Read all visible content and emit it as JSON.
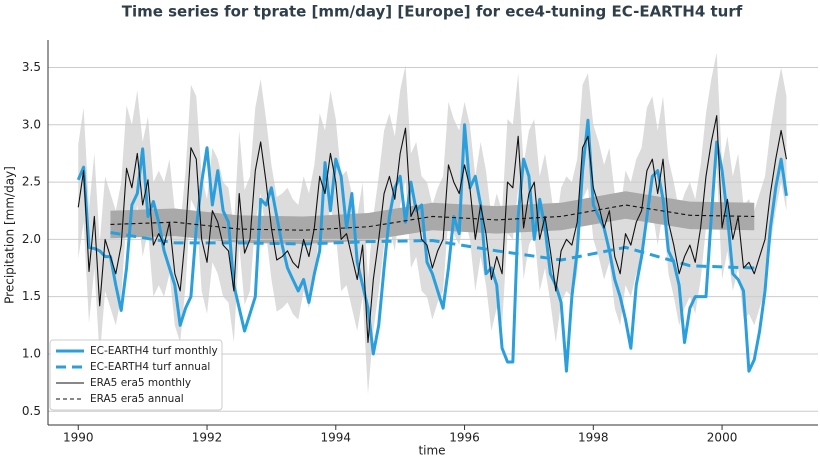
{
  "chart_data": {
    "type": "line",
    "title": "Time series for tprate [mm/day] [Europe] for ece4-tuning EC-EARTH4 turf",
    "xlabel": "time",
    "ylabel": "Precipitation [mm/day]",
    "xlim": [
      1989.53,
      2001.49
    ],
    "ylim": [
      0.38,
      3.74
    ],
    "xticks": [
      1990,
      1992,
      1994,
      1996,
      1998,
      2000
    ],
    "yticks": [
      {
        "value": 0.5,
        "label": "0.5"
      },
      {
        "value": 1,
        "label": "1.0"
      },
      {
        "value": 1.5,
        "label": "1.5"
      },
      {
        "value": 2,
        "label": "2.0"
      },
      {
        "value": 2.5,
        "label": "2.5"
      },
      {
        "value": 3,
        "label": "3.0"
      },
      {
        "value": 3.5,
        "label": "3.5"
      }
    ],
    "grid": true,
    "legend": "lower left",
    "bands": [
      {
        "color": "#dcdcdc",
        "x": [
          1990.0,
          1990.083,
          1990.167,
          1990.25,
          1990.333,
          1990.417,
          1990.5,
          1990.583,
          1990.667,
          1990.75,
          1990.833,
          1990.917,
          1991.0,
          1991.083,
          1991.167,
          1991.25,
          1991.333,
          1991.417,
          1991.5,
          1991.583,
          1991.667,
          1991.75,
          1991.833,
          1991.917,
          1992.0,
          1992.083,
          1992.167,
          1992.25,
          1992.333,
          1992.417,
          1992.5,
          1992.583,
          1992.667,
          1992.75,
          1992.833,
          1992.917,
          1993.0,
          1993.083,
          1993.167,
          1993.25,
          1993.333,
          1993.417,
          1993.5,
          1993.583,
          1993.667,
          1993.75,
          1993.833,
          1993.917,
          1994.0,
          1994.083,
          1994.167,
          1994.25,
          1994.333,
          1994.417,
          1994.5,
          1994.583,
          1994.667,
          1994.75,
          1994.833,
          1994.917,
          1995.0,
          1995.083,
          1995.167,
          1995.25,
          1995.333,
          1995.417,
          1995.5,
          1995.583,
          1995.667,
          1995.75,
          1995.833,
          1995.917,
          1996.0,
          1996.083,
          1996.167,
          1996.25,
          1996.333,
          1996.417,
          1996.5,
          1996.583,
          1996.667,
          1996.75,
          1996.833,
          1996.917,
          1997.0,
          1997.083,
          1997.167,
          1997.25,
          1997.333,
          1997.417,
          1997.5,
          1997.583,
          1997.667,
          1997.75,
          1997.833,
          1997.917,
          1998.0,
          1998.083,
          1998.167,
          1998.25,
          1998.333,
          1998.417,
          1998.5,
          1998.583,
          1998.667,
          1998.75,
          1998.833,
          1998.917,
          1999.0,
          1999.083,
          1999.167,
          1999.25,
          1999.333,
          1999.417,
          1999.5,
          1999.583,
          1999.667,
          1999.75,
          1999.833,
          1999.917,
          2000.0,
          2000.083,
          2000.167,
          2000.25,
          2000.333,
          2000.417,
          2000.5,
          2000.583,
          2000.667,
          2000.75,
          2000.833,
          2000.917,
          2001.0
        ],
        "lower": [
          1.83,
          2.15,
          1.27,
          1.75,
          0.97,
          1.55,
          1.4,
          1.25,
          1.5,
          2.17,
          2.0,
          2.3,
          1.85,
          2.07,
          1.5,
          1.6,
          1.5,
          1.7,
          1.25,
          1.1,
          1.6,
          2.35,
          2.25,
          1.55,
          1.35,
          1.8,
          1.7,
          1.5,
          1.45,
          1.1,
          1.95,
          1.43,
          1.55,
          2.15,
          2.4,
          2.05,
          1.65,
          1.37,
          1.4,
          1.45,
          1.35,
          1.3,
          1.55,
          1.4,
          1.65,
          2.1,
          1.95,
          2.3,
          2.05,
          1.55,
          1.6,
          1.4,
          1.2,
          1.5,
          0.65,
          1.2,
          1.55,
          1.95,
          2.1,
          1.9,
          2.3,
          2.52,
          1.75,
          1.85,
          1.55,
          1.5,
          1.3,
          1.45,
          1.55,
          2.2,
          2.05,
          1.95,
          2.2,
          2.0,
          1.55,
          1.85,
          1.6,
          1.2,
          1.4,
          1.25,
          2.05,
          2.0,
          2.45,
          1.65,
          1.95,
          2.05,
          1.55,
          1.75,
          1.45,
          1.1,
          1.45,
          1.55,
          1.5,
          1.7,
          2.35,
          2.45,
          2.0,
          1.85,
          1.65,
          1.8,
          1.4,
          1.25,
          1.6,
          1.5,
          1.7,
          1.8,
          2.15,
          2.25,
          1.95,
          2.25,
          1.7,
          1.5,
          1.25,
          1.4,
          1.5,
          1.35,
          1.65,
          2.1,
          2.4,
          2.63,
          1.65,
          1.9,
          1.55,
          1.75,
          1.3,
          1.35,
          1.25,
          1.4,
          1.55,
          1.95,
          2.25,
          2.5,
          2.25
        ],
        "upper": [
          2.83,
          3.15,
          2.27,
          2.75,
          1.97,
          2.55,
          2.4,
          2.25,
          2.5,
          3.17,
          3.0,
          3.3,
          2.85,
          3.07,
          2.5,
          2.6,
          2.5,
          2.7,
          2.25,
          2.1,
          2.6,
          3.35,
          3.25,
          2.55,
          2.35,
          2.8,
          2.7,
          2.5,
          2.45,
          2.1,
          2.95,
          2.43,
          2.55,
          3.15,
          3.4,
          3.05,
          2.65,
          2.37,
          2.4,
          2.45,
          2.35,
          2.3,
          2.55,
          2.4,
          2.65,
          3.1,
          2.95,
          3.3,
          3.05,
          2.55,
          2.6,
          2.4,
          2.2,
          2.5,
          1.65,
          2.2,
          2.55,
          2.95,
          3.1,
          2.9,
          3.3,
          3.52,
          2.75,
          2.85,
          2.55,
          2.5,
          2.3,
          2.45,
          2.55,
          3.2,
          3.05,
          2.95,
          3.2,
          3.0,
          2.55,
          2.85,
          2.6,
          2.2,
          2.4,
          2.25,
          3.05,
          3.0,
          3.45,
          2.65,
          2.95,
          3.05,
          2.55,
          2.75,
          2.45,
          2.1,
          2.45,
          2.55,
          2.5,
          2.7,
          3.35,
          3.45,
          3.0,
          2.85,
          2.65,
          2.8,
          2.4,
          2.25,
          2.6,
          2.5,
          2.7,
          2.8,
          3.15,
          3.25,
          2.95,
          3.25,
          2.7,
          2.5,
          2.25,
          2.4,
          2.5,
          2.35,
          2.65,
          3.1,
          3.4,
          3.63,
          2.65,
          2.9,
          2.55,
          2.75,
          2.3,
          2.35,
          2.25,
          2.4,
          2.55,
          2.95,
          3.25,
          3.5,
          3.25
        ]
      },
      {
        "color": "#a9a9a9",
        "x": [
          1990.5,
          1991.5,
          1992.5,
          1993.5,
          1994.5,
          1995.5,
          1996.5,
          1997.5,
          1998.5,
          1999.5,
          2000.5
        ],
        "lower": [
          2.01,
          2.03,
          1.97,
          1.96,
          1.99,
          2.08,
          2.05,
          2.08,
          2.18,
          2.09,
          2.08
        ],
        "upper": [
          2.25,
          2.27,
          2.21,
          2.2,
          2.23,
          2.32,
          2.29,
          2.32,
          2.42,
          2.33,
          2.32
        ]
      }
    ],
    "series": [
      {
        "name": "EC-EARTH4 turf monthly",
        "color": "#2b9fdc",
        "width": 3,
        "linestyle": "solid",
        "x": [
          1990.0,
          1990.083,
          1990.167,
          1990.25,
          1990.333,
          1990.417,
          1990.5,
          1990.583,
          1990.667,
          1990.75,
          1990.833,
          1990.917,
          1991.0,
          1991.083,
          1991.167,
          1991.25,
          1991.333,
          1991.417,
          1991.5,
          1991.583,
          1991.667,
          1991.75,
          1991.833,
          1991.917,
          1992.0,
          1992.083,
          1992.167,
          1992.25,
          1992.333,
          1992.417,
          1992.5,
          1992.583,
          1992.667,
          1992.75,
          1992.833,
          1992.917,
          1993.0,
          1993.083,
          1993.167,
          1993.25,
          1993.333,
          1993.417,
          1993.5,
          1993.583,
          1993.667,
          1993.75,
          1993.833,
          1993.917,
          1994.0,
          1994.083,
          1994.167,
          1994.25,
          1994.333,
          1994.417,
          1994.5,
          1994.583,
          1994.667,
          1994.75,
          1994.833,
          1994.917,
          1995.0,
          1995.083,
          1995.167,
          1995.25,
          1995.333,
          1995.417,
          1995.5,
          1995.583,
          1995.667,
          1995.75,
          1995.833,
          1995.917,
          1996.0,
          1996.083,
          1996.167,
          1996.25,
          1996.333,
          1996.417,
          1996.5,
          1996.583,
          1996.667,
          1996.75,
          1996.833,
          1996.917,
          1997.0,
          1997.083,
          1997.167,
          1997.25,
          1997.333,
          1997.417,
          1997.5,
          1997.583,
          1997.667,
          1997.75,
          1997.833,
          1997.917,
          1998.0,
          1998.083,
          1998.167,
          1998.25,
          1998.333,
          1998.417,
          1998.5,
          1998.583,
          1998.667,
          1998.75,
          1998.833,
          1998.917,
          1999.0,
          1999.083,
          1999.167,
          1999.25,
          1999.333,
          1999.417,
          1999.5,
          1999.583,
          1999.667,
          1999.75,
          1999.833,
          1999.917,
          2000.0,
          2000.083,
          2000.167,
          2000.25,
          2000.333,
          2000.417,
          2000.5,
          2000.583,
          2000.667,
          2000.75,
          2000.833,
          2000.917,
          2001.0
        ],
        "values": [
          2.52,
          2.63,
          1.93,
          1.92,
          1.9,
          1.85,
          1.85,
          1.6,
          1.38,
          1.75,
          2.3,
          2.4,
          2.79,
          2.2,
          2.33,
          2.15,
          1.9,
          1.75,
          1.6,
          1.25,
          1.4,
          1.5,
          2.1,
          2.5,
          2.8,
          2.3,
          2.6,
          2.25,
          2.15,
          1.6,
          1.4,
          1.2,
          1.35,
          1.5,
          2.35,
          2.3,
          2.45,
          2.2,
          1.95,
          1.75,
          1.65,
          1.55,
          1.65,
          1.45,
          1.7,
          1.9,
          2.67,
          2.25,
          2.7,
          2.55,
          2.1,
          2.4,
          1.8,
          1.6,
          1.4,
          1.0,
          1.25,
          1.75,
          2.2,
          2.45,
          2.55,
          2.15,
          2.5,
          2.25,
          2.3,
          1.8,
          1.7,
          1.55,
          1.4,
          1.75,
          2.2,
          2.05,
          3.0,
          2.45,
          2.55,
          2.3,
          1.7,
          1.75,
          1.6,
          1.05,
          0.93,
          0.93,
          2.2,
          2.7,
          2.55,
          2.0,
          2.35,
          2.1,
          1.7,
          1.6,
          1.45,
          0.85,
          1.5,
          1.9,
          2.6,
          3.04,
          2.3,
          2.2,
          2.1,
          1.9,
          1.65,
          1.5,
          1.3,
          1.05,
          1.6,
          1.85,
          2.2,
          2.55,
          2.6,
          2.35,
          1.9,
          1.8,
          1.6,
          1.1,
          1.4,
          1.5,
          1.5,
          1.5,
          2.2,
          2.85,
          2.6,
          2.2,
          1.7,
          1.65,
          1.55,
          0.85,
          0.95,
          1.2,
          1.55,
          2.1,
          2.45,
          2.7,
          2.38
        ]
      },
      {
        "name": "EC-EARTH4 turf annual",
        "color": "#2b9fdc",
        "width": 3,
        "linestyle": "dashed",
        "x": [
          1990.5,
          1991.5,
          1992.5,
          1993.5,
          1994.5,
          1995.5,
          1996.5,
          1997.5,
          1998.5,
          1999.5,
          2000.5
        ],
        "values": [
          2.06,
          1.97,
          1.97,
          1.96,
          1.98,
          1.99,
          1.9,
          1.82,
          1.93,
          1.77,
          1.75
        ]
      },
      {
        "name": "ERA5 era5 monthly",
        "color": "#111111",
        "width": 1.1,
        "linestyle": "solid",
        "x": [
          1990.0,
          1990.083,
          1990.167,
          1990.25,
          1990.333,
          1990.417,
          1990.5,
          1990.583,
          1990.667,
          1990.75,
          1990.833,
          1990.917,
          1991.0,
          1991.083,
          1991.167,
          1991.25,
          1991.333,
          1991.417,
          1991.5,
          1991.583,
          1991.667,
          1991.75,
          1991.833,
          1991.917,
          1992.0,
          1992.083,
          1992.167,
          1992.25,
          1992.333,
          1992.417,
          1992.5,
          1992.583,
          1992.667,
          1992.75,
          1992.833,
          1992.917,
          1993.0,
          1993.083,
          1993.167,
          1993.25,
          1993.333,
          1993.417,
          1993.5,
          1993.583,
          1993.667,
          1993.75,
          1993.833,
          1993.917,
          1994.0,
          1994.083,
          1994.167,
          1994.25,
          1994.333,
          1994.417,
          1994.5,
          1994.583,
          1994.667,
          1994.75,
          1994.833,
          1994.917,
          1995.0,
          1995.083,
          1995.167,
          1995.25,
          1995.333,
          1995.417,
          1995.5,
          1995.583,
          1995.667,
          1995.75,
          1995.833,
          1995.917,
          1996.0,
          1996.083,
          1996.167,
          1996.25,
          1996.333,
          1996.417,
          1996.5,
          1996.583,
          1996.667,
          1996.75,
          1996.833,
          1996.917,
          1997.0,
          1997.083,
          1997.167,
          1997.25,
          1997.333,
          1997.417,
          1997.5,
          1997.583,
          1997.667,
          1997.75,
          1997.833,
          1997.917,
          1998.0,
          1998.083,
          1998.167,
          1998.25,
          1998.333,
          1998.417,
          1998.5,
          1998.583,
          1998.667,
          1998.75,
          1998.833,
          1998.917,
          1999.0,
          1999.083,
          1999.167,
          1999.25,
          1999.333,
          1999.417,
          1999.5,
          1999.583,
          1999.667,
          1999.75,
          1999.833,
          1999.917,
          2000.0,
          2000.083,
          2000.167,
          2000.25,
          2000.333,
          2000.417,
          2000.5,
          2000.583,
          2000.667,
          2000.75,
          2000.833,
          2000.917,
          2001.0
        ],
        "values": [
          2.28,
          2.6,
          1.72,
          2.2,
          1.42,
          2.0,
          1.85,
          1.7,
          1.95,
          2.62,
          2.45,
          2.75,
          2.3,
          2.52,
          1.95,
          2.05,
          1.95,
          2.15,
          1.7,
          1.55,
          2.05,
          2.8,
          2.7,
          2.0,
          1.8,
          2.25,
          2.15,
          1.95,
          1.9,
          1.55,
          2.4,
          1.88,
          2.0,
          2.6,
          2.85,
          2.5,
          2.1,
          1.82,
          1.85,
          1.9,
          1.8,
          1.75,
          2.0,
          1.85,
          2.1,
          2.55,
          2.4,
          2.75,
          2.5,
          2.0,
          2.05,
          1.85,
          1.65,
          1.95,
          1.1,
          1.65,
          2.0,
          2.4,
          2.55,
          2.35,
          2.75,
          2.97,
          2.2,
          2.3,
          2.0,
          1.95,
          1.75,
          1.9,
          2.0,
          2.65,
          2.5,
          2.4,
          2.65,
          2.45,
          2.0,
          2.3,
          2.05,
          1.65,
          1.85,
          1.7,
          2.5,
          2.45,
          2.9,
          2.1,
          2.4,
          2.5,
          2.0,
          2.2,
          1.9,
          1.55,
          1.9,
          2.0,
          1.95,
          2.15,
          2.8,
          2.9,
          2.45,
          2.3,
          2.1,
          2.25,
          1.85,
          1.7,
          2.05,
          1.95,
          2.15,
          2.25,
          2.6,
          2.7,
          2.4,
          2.7,
          2.15,
          1.95,
          1.7,
          1.85,
          1.95,
          1.8,
          2.1,
          2.55,
          2.85,
          3.08,
          2.1,
          2.35,
          2.0,
          2.2,
          1.75,
          1.8,
          1.7,
          1.85,
          2.0,
          2.4,
          2.7,
          2.95,
          2.7
        ]
      },
      {
        "name": "ERA5 era5 annual",
        "color": "#111111",
        "width": 1.1,
        "linestyle": "dashed",
        "x": [
          1990.5,
          1991.5,
          1992.5,
          1993.5,
          1994.5,
          1995.5,
          1996.5,
          1997.5,
          1998.5,
          1999.5,
          2000.5
        ],
        "values": [
          2.13,
          2.15,
          2.09,
          2.08,
          2.11,
          2.2,
          2.17,
          2.2,
          2.3,
          2.21,
          2.2
        ]
      }
    ]
  }
}
